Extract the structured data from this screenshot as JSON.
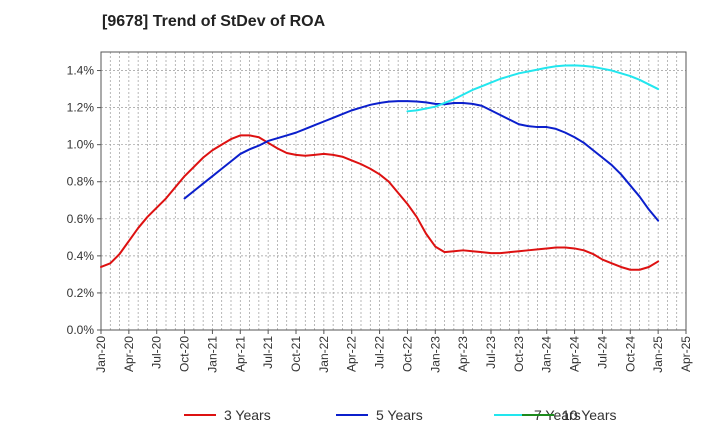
{
  "chart_data": {
    "type": "line",
    "title": "[9678]  Trend of StDev of ROA",
    "xlabel": "",
    "ylabel": "",
    "x_ticks": [
      "Jan-20",
      "Apr-20",
      "Jul-20",
      "Oct-20",
      "Jan-21",
      "Apr-21",
      "Jul-21",
      "Oct-21",
      "Jan-22",
      "Apr-22",
      "Jul-22",
      "Oct-22",
      "Jan-23",
      "Apr-23",
      "Jul-23",
      "Oct-23",
      "Jan-24",
      "Apr-24",
      "Jul-24",
      "Oct-24",
      "Jan-25",
      "Apr-25"
    ],
    "y_ticks": [
      "0.0%",
      "0.2%",
      "0.4%",
      "0.6%",
      "0.8%",
      "1.0%",
      "1.2%",
      "1.4%"
    ],
    "ylim": [
      0,
      1.5
    ],
    "y_unit": "%",
    "grid": true,
    "legend_position": "bottom",
    "series": [
      {
        "name": "3 Years",
        "color": "#dd1111",
        "points": [
          [
            "Jan-20",
            0.34
          ],
          [
            "Feb-20",
            0.36
          ],
          [
            "Mar-20",
            0.41
          ],
          [
            "Apr-20",
            0.48
          ],
          [
            "May-20",
            0.55
          ],
          [
            "Jun-20",
            0.61
          ],
          [
            "Jul-20",
            0.66
          ],
          [
            "Aug-20",
            0.71
          ],
          [
            "Sep-20",
            0.77
          ],
          [
            "Oct-20",
            0.83
          ],
          [
            "Nov-20",
            0.88
          ],
          [
            "Dec-20",
            0.93
          ],
          [
            "Jan-21",
            0.97
          ],
          [
            "Feb-21",
            1.0
          ],
          [
            "Mar-21",
            1.03
          ],
          [
            "Apr-21",
            1.05
          ],
          [
            "May-21",
            1.05
          ],
          [
            "Jun-21",
            1.04
          ],
          [
            "Jul-21",
            1.01
          ],
          [
            "Aug-21",
            0.98
          ],
          [
            "Sep-21",
            0.955
          ],
          [
            "Oct-21",
            0.945
          ],
          [
            "Nov-21",
            0.94
          ],
          [
            "Dec-21",
            0.945
          ],
          [
            "Jan-22",
            0.95
          ],
          [
            "Feb-22",
            0.945
          ],
          [
            "Mar-22",
            0.935
          ],
          [
            "Apr-22",
            0.915
          ],
          [
            "May-22",
            0.895
          ],
          [
            "Jun-22",
            0.87
          ],
          [
            "Jul-22",
            0.84
          ],
          [
            "Aug-22",
            0.8
          ],
          [
            "Sep-22",
            0.74
          ],
          [
            "Oct-22",
            0.68
          ],
          [
            "Nov-22",
            0.61
          ],
          [
            "Dec-22",
            0.52
          ],
          [
            "Jan-23",
            0.45
          ],
          [
            "Feb-23",
            0.42
          ],
          [
            "Mar-23",
            0.425
          ],
          [
            "Apr-23",
            0.43
          ],
          [
            "May-23",
            0.425
          ],
          [
            "Jun-23",
            0.42
          ],
          [
            "Jul-23",
            0.415
          ],
          [
            "Aug-23",
            0.415
          ],
          [
            "Sep-23",
            0.42
          ],
          [
            "Oct-23",
            0.425
          ],
          [
            "Nov-23",
            0.43
          ],
          [
            "Dec-23",
            0.435
          ],
          [
            "Jan-24",
            0.44
          ],
          [
            "Feb-24",
            0.445
          ],
          [
            "Mar-24",
            0.445
          ],
          [
            "Apr-24",
            0.44
          ],
          [
            "May-24",
            0.43
          ],
          [
            "Jun-24",
            0.41
          ],
          [
            "Jul-24",
            0.38
          ],
          [
            "Aug-24",
            0.36
          ],
          [
            "Sep-24",
            0.34
          ],
          [
            "Oct-24",
            0.325
          ],
          [
            "Nov-24",
            0.325
          ],
          [
            "Dec-24",
            0.34
          ],
          [
            "Jan-25",
            0.37
          ]
        ]
      },
      {
        "name": "5 Years",
        "color": "#0b1fcc",
        "points": [
          [
            "Oct-20",
            0.71
          ],
          [
            "Nov-20",
            0.75
          ],
          [
            "Dec-20",
            0.79
          ],
          [
            "Jan-21",
            0.83
          ],
          [
            "Feb-21",
            0.87
          ],
          [
            "Mar-21",
            0.91
          ],
          [
            "Apr-21",
            0.95
          ],
          [
            "May-21",
            0.975
          ],
          [
            "Jun-21",
            0.995
          ],
          [
            "Jul-21",
            1.02
          ],
          [
            "Aug-21",
            1.035
          ],
          [
            "Sep-21",
            1.05
          ],
          [
            "Oct-21",
            1.065
          ],
          [
            "Nov-21",
            1.085
          ],
          [
            "Dec-21",
            1.105
          ],
          [
            "Jan-22",
            1.125
          ],
          [
            "Feb-22",
            1.145
          ],
          [
            "Mar-22",
            1.165
          ],
          [
            "Apr-22",
            1.185
          ],
          [
            "May-22",
            1.2
          ],
          [
            "Jun-22",
            1.215
          ],
          [
            "Jul-22",
            1.225
          ],
          [
            "Aug-22",
            1.232
          ],
          [
            "Sep-22",
            1.235
          ],
          [
            "Oct-22",
            1.235
          ],
          [
            "Nov-22",
            1.233
          ],
          [
            "Dec-22",
            1.228
          ],
          [
            "Jan-23",
            1.22
          ],
          [
            "Feb-23",
            1.218
          ],
          [
            "Mar-23",
            1.225
          ],
          [
            "Apr-23",
            1.225
          ],
          [
            "May-23",
            1.22
          ],
          [
            "Jun-23",
            1.21
          ],
          [
            "Jul-23",
            1.185
          ],
          [
            "Aug-23",
            1.16
          ],
          [
            "Sep-23",
            1.135
          ],
          [
            "Oct-23",
            1.11
          ],
          [
            "Nov-23",
            1.1
          ],
          [
            "Dec-23",
            1.095
          ],
          [
            "Jan-24",
            1.095
          ],
          [
            "Feb-24",
            1.085
          ],
          [
            "Mar-24",
            1.065
          ],
          [
            "Apr-24",
            1.04
          ],
          [
            "May-24",
            1.01
          ],
          [
            "Jun-24",
            0.97
          ],
          [
            "Jul-24",
            0.93
          ],
          [
            "Aug-24",
            0.89
          ],
          [
            "Sep-24",
            0.84
          ],
          [
            "Oct-24",
            0.78
          ],
          [
            "Nov-24",
            0.72
          ],
          [
            "Dec-24",
            0.65
          ],
          [
            "Jan-25",
            0.59
          ]
        ]
      },
      {
        "name": "7 Years",
        "color": "#22e6ee",
        "points": [
          [
            "Oct-22",
            1.18
          ],
          [
            "Nov-22",
            1.185
          ],
          [
            "Dec-22",
            1.195
          ],
          [
            "Jan-23",
            1.205
          ],
          [
            "Feb-23",
            1.225
          ],
          [
            "Mar-23",
            1.245
          ],
          [
            "Apr-23",
            1.27
          ],
          [
            "May-23",
            1.295
          ],
          [
            "Jun-23",
            1.315
          ],
          [
            "Jul-23",
            1.335
          ],
          [
            "Aug-23",
            1.355
          ],
          [
            "Sep-23",
            1.37
          ],
          [
            "Oct-23",
            1.385
          ],
          [
            "Nov-23",
            1.395
          ],
          [
            "Dec-23",
            1.405
          ],
          [
            "Jan-24",
            1.415
          ],
          [
            "Feb-24",
            1.423
          ],
          [
            "Mar-24",
            1.427
          ],
          [
            "Apr-24",
            1.428
          ],
          [
            "May-24",
            1.425
          ],
          [
            "Jun-24",
            1.42
          ],
          [
            "Jul-24",
            1.41
          ],
          [
            "Aug-24",
            1.4
          ],
          [
            "Sep-24",
            1.385
          ],
          [
            "Oct-24",
            1.37
          ],
          [
            "Nov-24",
            1.35
          ],
          [
            "Dec-24",
            1.325
          ],
          [
            "Jan-25",
            1.3
          ]
        ]
      },
      {
        "name": "10 Years",
        "color": "#1d8a1d",
        "points": []
      }
    ]
  }
}
